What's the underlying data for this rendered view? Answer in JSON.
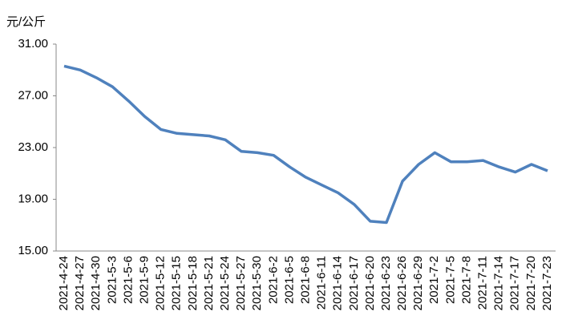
{
  "chart_data": {
    "type": "line",
    "y_label": "元/公斤",
    "categories": [
      "2021-4-24",
      "2021-4-27",
      "2021-4-30",
      "2021-5-3",
      "2021-5-6",
      "2021-5-9",
      "2021-5-12",
      "2021-5-15",
      "2021-5-18",
      "2021-5-21",
      "2021-5-24",
      "2021-5-27",
      "2021-5-30",
      "2021-6-2",
      "2021-6-5",
      "2021-6-8",
      "2021-6-11",
      "2021-6-14",
      "2021-6-17",
      "2021-6-20",
      "2021-6-23",
      "2021-6-26",
      "2021-6-29",
      "2021-7-2",
      "2021-7-5",
      "2021-7-8",
      "2021-7-11",
      "2021-7-14",
      "2021-7-17",
      "2021-7-20",
      "2021-7-23"
    ],
    "values": [
      29.3,
      29.0,
      28.4,
      27.7,
      26.6,
      25.4,
      24.4,
      24.1,
      24.0,
      23.9,
      23.6,
      22.7,
      22.6,
      22.4,
      21.5,
      20.7,
      20.1,
      19.5,
      18.6,
      17.3,
      17.2,
      20.4,
      21.7,
      22.6,
      21.9,
      21.9,
      22.0,
      21.5,
      21.1,
      21.7,
      21.2
    ],
    "color": "#4f81bd",
    "ylim": [
      15,
      31
    ],
    "yticks": [
      {
        "value": 15,
        "label": "15.00"
      },
      {
        "value": 19,
        "label": "19.00"
      },
      {
        "value": 23,
        "label": "23.00"
      },
      {
        "value": 27,
        "label": "27.00"
      },
      {
        "value": 31,
        "label": "31.00"
      }
    ],
    "grid": false
  }
}
